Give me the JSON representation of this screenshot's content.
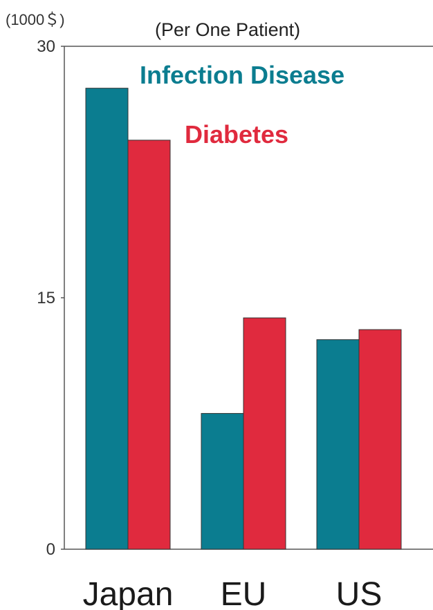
{
  "chart_data": {
    "type": "bar",
    "unit_label": "(1000＄)",
    "title": "(Per One Patient)",
    "categories": [
      "Japan",
      "EU",
      "US"
    ],
    "series": [
      {
        "name": "Infection Disease",
        "color": "#0b7d90",
        "values": [
          27.5,
          8.1,
          12.5
        ]
      },
      {
        "name": "Diabetes",
        "color": "#e02a3e",
        "values": [
          24.4,
          13.8,
          13.1
        ]
      }
    ],
    "ylim": [
      0,
      30
    ],
    "yticks": [
      "0",
      "15",
      "30"
    ],
    "legend_position": "top-right",
    "grid": false
  }
}
